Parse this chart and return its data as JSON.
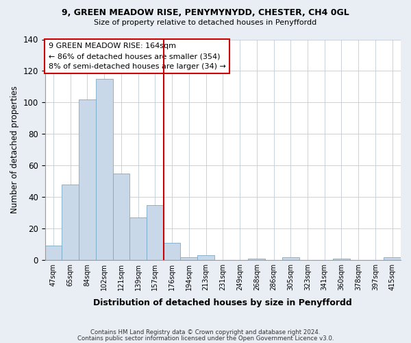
{
  "title1": "9, GREEN MEADOW RISE, PENYMYNYDD, CHESTER, CH4 0GL",
  "title2": "Size of property relative to detached houses in Penyffordd",
  "xlabel": "Distribution of detached houses by size in Penyffordd",
  "ylabel": "Number of detached properties",
  "bin_labels": [
    "47sqm",
    "65sqm",
    "84sqm",
    "102sqm",
    "121sqm",
    "139sqm",
    "157sqm",
    "176sqm",
    "194sqm",
    "213sqm",
    "231sqm",
    "249sqm",
    "268sqm",
    "286sqm",
    "305sqm",
    "323sqm",
    "341sqm",
    "360sqm",
    "378sqm",
    "397sqm",
    "415sqm"
  ],
  "bin_values": [
    9,
    48,
    102,
    115,
    55,
    27,
    35,
    11,
    2,
    3,
    0,
    0,
    1,
    0,
    2,
    0,
    0,
    1,
    0,
    0,
    2
  ],
  "bar_color": "#c8d8e8",
  "bar_edge_color": "#7aaac8",
  "vline_x": 7,
  "vline_color": "#cc0000",
  "annotation_line1": "9 GREEN MEADOW RISE: 164sqm",
  "annotation_line2": "← 86% of detached houses are smaller (354)",
  "annotation_line3": "8% of semi-detached houses are larger (34) →",
  "annotation_box_edge": "#cc0000",
  "ylim": [
    0,
    140
  ],
  "yticks": [
    0,
    20,
    40,
    60,
    80,
    100,
    120,
    140
  ],
  "footnote1": "Contains HM Land Registry data © Crown copyright and database right 2024.",
  "footnote2": "Contains public sector information licensed under the Open Government Licence v3.0.",
  "bg_color": "#e8eef4",
  "plot_bg_color": "#ffffff",
  "grid_color": "#c0ccd8"
}
